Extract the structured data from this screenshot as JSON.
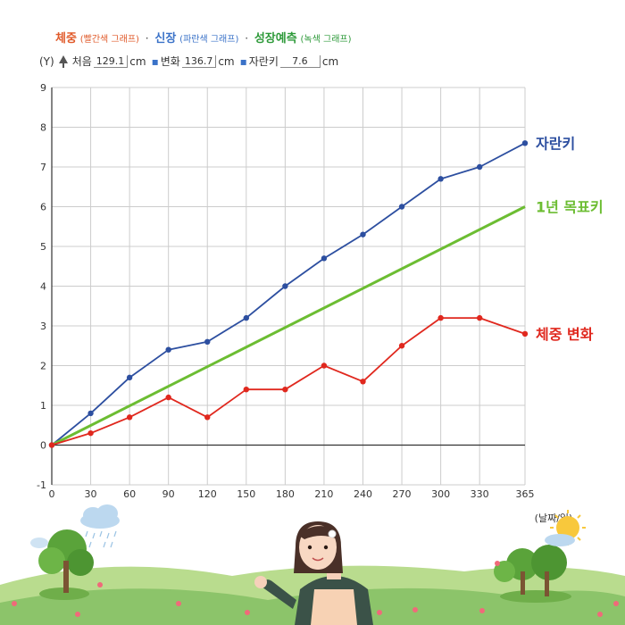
{
  "header": {
    "legend": {
      "weight_label": "체중",
      "weight_sub": "(빨간색 그래프)",
      "height_label": "신장",
      "height_sub": "(파란색 그래프)",
      "forecast_label": "성장예측",
      "forecast_sub": "(녹색 그래프)",
      "separator": "·"
    },
    "info": {
      "y_label": "(Y)",
      "first_label": "처음",
      "first_value": "129.1",
      "first_unit": "cm",
      "change_label": "변화",
      "change_value": "136.7",
      "change_unit": "cm",
      "growth_label": "자란키",
      "growth_value": "7.6",
      "growth_unit": "cm"
    }
  },
  "colors": {
    "height": "#2d4fa0",
    "weight": "#e0281e",
    "forecast": "#6cbd32",
    "grid": "#cccccc",
    "axis": "#333333",
    "legend_weight": "#e05a2a",
    "legend_height": "#3a72c8",
    "legend_forecast": "#2e9a3a"
  },
  "chart_data": {
    "type": "line",
    "x": [
      0,
      30,
      60,
      90,
      120,
      150,
      180,
      210,
      240,
      270,
      300,
      330,
      365
    ],
    "xticks": [
      "0",
      "30",
      "60",
      "90",
      "120",
      "150",
      "180",
      "210",
      "240",
      "270",
      "300",
      "330",
      "365"
    ],
    "yticks": [
      "-1",
      "0",
      "1",
      "2",
      "3",
      "4",
      "5",
      "6",
      "7",
      "8",
      "9"
    ],
    "xlim": [
      0,
      365
    ],
    "ylim": [
      -1,
      9
    ],
    "xlabel": "(날짜/일)",
    "grid": true,
    "series": [
      {
        "name": "자란키",
        "color": "#2d4fa0",
        "markers": true,
        "values": [
          0,
          0.8,
          1.7,
          2.4,
          2.6,
          3.2,
          4.0,
          4.7,
          5.3,
          6.0,
          6.7,
          7.0,
          7.6
        ]
      },
      {
        "name": "1년 목표키",
        "color": "#6cbd32",
        "markers": false,
        "x": [
          0,
          365
        ],
        "values": [
          0,
          6.0
        ]
      },
      {
        "name": "체중 변화",
        "color": "#e0281e",
        "markers": true,
        "values": [
          0,
          0.3,
          0.7,
          1.2,
          0.7,
          1.4,
          1.4,
          2.0,
          1.6,
          2.5,
          3.2,
          3.2,
          2.8
        ]
      }
    ]
  }
}
